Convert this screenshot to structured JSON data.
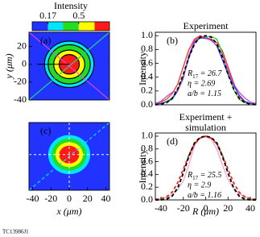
{
  "chart_data": [
    {
      "type": "contour",
      "panel_label": "(a)",
      "ylabel": "y (μm)",
      "xlim": [
        -44,
        44
      ],
      "ylim": [
        -40,
        36
      ],
      "yticks": [
        20,
        0,
        -20,
        -40
      ],
      "outline": true,
      "colorbar": {
        "title": "Intensity",
        "levels": [
          0.0,
          0.17,
          0.33,
          0.5,
          0.67,
          0.83
        ],
        "colors": [
          "#2233ff",
          "#00e5ff",
          "#22dd22",
          "#ffff00",
          "#ff1a1a"
        ],
        "ticks": [
          0.17,
          0.5
        ]
      },
      "half_width_x": [
        27,
        23,
        17,
        11
      ],
      "half_width_y": [
        26,
        22,
        16,
        11
      ]
    },
    {
      "type": "line",
      "panel_label": "(b)",
      "title": "Experiment",
      "ylabel": "Intensity",
      "xlim": [
        -45,
        45
      ],
      "ylim": [
        0,
        1.05
      ],
      "yticks": [
        {
          "value": 0,
          "label": "0.0"
        },
        {
          "value": 0.2,
          "label": "0.2"
        },
        {
          "value": 0.4,
          "label": "0.4"
        },
        {
          "value": 0.6,
          "label": "0.6"
        },
        {
          "value": 0.8,
          "label": "0.8"
        },
        {
          "value": 1,
          "label": "1.0"
        }
      ],
      "x": [
        -45,
        -40,
        -35,
        -30,
        -25,
        -20,
        -15,
        -10,
        -5,
        0,
        5,
        10,
        15,
        20,
        25,
        30,
        35,
        40,
        45
      ],
      "series": [
        {
          "color": "#ff2020",
          "dash": false,
          "values": [
            0.02,
            0.04,
            0.08,
            0.16,
            0.3,
            0.55,
            0.8,
            0.95,
            1,
            0.97,
            0.95,
            0.9,
            0.78,
            0.55,
            0.32,
            0.12,
            0.04,
            0.02,
            0.01
          ]
        },
        {
          "color": "#22cc22",
          "dash": false,
          "values": [
            0.01,
            0.02,
            0.05,
            0.1,
            0.22,
            0.42,
            0.7,
            0.92,
            0.96,
            0.98,
            0.99,
            0.95,
            0.75,
            0.46,
            0.22,
            0.08,
            0.03,
            0.02,
            0.01
          ]
        },
        {
          "color": "#2233ff",
          "dash": false,
          "values": [
            0.01,
            0.02,
            0.04,
            0.08,
            0.2,
            0.4,
            0.68,
            0.9,
            0.97,
            0.96,
            0.94,
            0.85,
            0.65,
            0.44,
            0.28,
            0.14,
            0.05,
            0.02,
            0.01
          ]
        },
        {
          "color": "#c040c0",
          "dash": false,
          "values": [
            0.02,
            0.05,
            0.12,
            0.18,
            0.2,
            0.38,
            0.72,
            0.93,
            0.98,
            0.97,
            0.93,
            0.86,
            0.72,
            0.5,
            0.3,
            0.18,
            0.1,
            0.04,
            0.02
          ]
        },
        {
          "color": "#000000",
          "dash": true,
          "values": [
            0,
            0.01,
            0.03,
            0.09,
            0.23,
            0.44,
            0.69,
            0.88,
            0.98,
            1,
            0.98,
            0.88,
            0.69,
            0.44,
            0.23,
            0.09,
            0.03,
            0.01,
            0
          ]
        }
      ],
      "annotations": [
        {
          "text": "R",
          "sub": "17",
          "rest": " = 26.7"
        },
        {
          "text": "η = 2.69"
        },
        {
          "text": "a/b = 1.15"
        }
      ]
    },
    {
      "type": "contour",
      "panel_label": "(c)",
      "xlabel": "x (μm)",
      "xlim": [
        -44,
        44
      ],
      "ylim": [
        -40,
        36
      ],
      "xticks": [
        -40,
        -20,
        0,
        20,
        40
      ],
      "outline": false,
      "half_width_x": [
        23,
        19,
        15,
        11
      ],
      "half_width_y": [
        22,
        18,
        14,
        10
      ]
    },
    {
      "type": "line",
      "panel_label": "(d)",
      "title": "Experiment +",
      "subtitle": "simulation",
      "ylabel": "Intensity",
      "xlabel": "R (μm)",
      "xlim": [
        -45,
        45
      ],
      "ylim": [
        0,
        1.05
      ],
      "xticks": [
        -40,
        -20,
        0,
        20,
        40
      ],
      "yticks": [
        {
          "value": 0,
          "label": "0.0"
        },
        {
          "value": 0.2,
          "label": "0.2"
        },
        {
          "value": 0.4,
          "label": "0.4"
        },
        {
          "value": 0.6,
          "label": "0.6"
        },
        {
          "value": 0.8,
          "label": "0.8"
        },
        {
          "value": 1,
          "label": "1.0"
        }
      ],
      "x": [
        -45,
        -40,
        -35,
        -30,
        -25,
        -20,
        -15,
        -10,
        -5,
        0,
        5,
        10,
        15,
        20,
        25,
        30,
        35,
        40,
        45
      ],
      "series": [
        {
          "color": "#ff99cc",
          "dash": false,
          "values": [
            0.01,
            0.02,
            0.04,
            0.08,
            0.16,
            0.3,
            0.55,
            0.85,
            0.97,
            0.99,
            0.95,
            0.8,
            0.55,
            0.32,
            0.18,
            0.1,
            0.05,
            0.02,
            0.01
          ]
        },
        {
          "color": "#ff2020",
          "dash": true,
          "values": [
            0.01,
            0.02,
            0.05,
            0.12,
            0.27,
            0.48,
            0.7,
            0.88,
            0.97,
            1,
            0.97,
            0.88,
            0.7,
            0.48,
            0.27,
            0.12,
            0.05,
            0.02,
            0.01
          ]
        },
        {
          "color": "#22aa22",
          "dash": true,
          "values": [
            0,
            0.01,
            0.02,
            0.06,
            0.18,
            0.42,
            0.7,
            0.9,
            0.98,
            1,
            0.98,
            0.9,
            0.7,
            0.42,
            0.18,
            0.06,
            0.02,
            0.01,
            0
          ]
        },
        {
          "color": "#000000",
          "dash": true,
          "values": [
            0,
            0,
            0.01,
            0.06,
            0.19,
            0.42,
            0.68,
            0.89,
            0.98,
            1,
            0.98,
            0.89,
            0.68,
            0.42,
            0.19,
            0.06,
            0.01,
            0,
            0
          ]
        }
      ],
      "annotations": [
        {
          "text": "R",
          "sub": "17",
          "rest": " = 25.5"
        },
        {
          "text": "η = 2.9"
        },
        {
          "text": "a/b = 1.16"
        }
      ]
    }
  ],
  "footer": "TC13986J1"
}
